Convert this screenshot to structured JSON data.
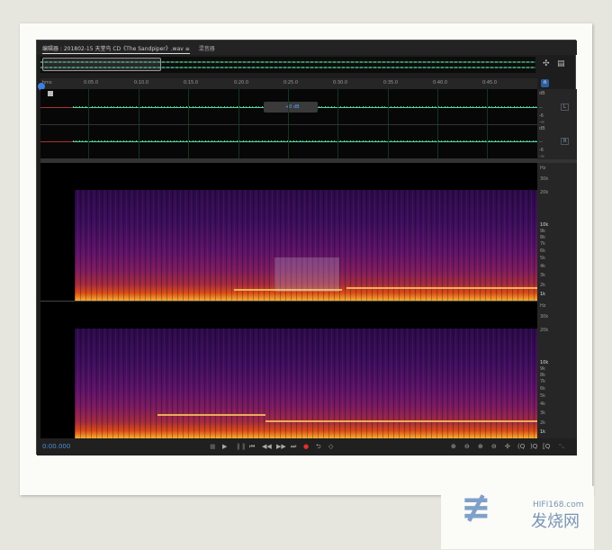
{
  "editor": {
    "tab_label": "编辑器 : 201802-15 天堂鸟 CD《The Sandpiper》.wav",
    "tab_menu_icon": "≡",
    "mixer_tab": "混音器"
  },
  "ruler": {
    "ticks": [
      "hms",
      "0:05.0",
      "0:10.0",
      "0:15.0",
      "0:20.0",
      "0:25.0",
      "0:30.0",
      "0:35.0",
      "0:40.0",
      "0:45.0"
    ]
  },
  "hud": {
    "volume": "+0 dB"
  },
  "waveform": {
    "channels": [
      {
        "label": "L",
        "scale": [
          "dB",
          "--",
          "-6",
          "-∞"
        ]
      },
      {
        "label": "R",
        "scale": [
          "dB",
          "--",
          "-6",
          "-∞"
        ]
      }
    ]
  },
  "spectrum": {
    "scale": [
      "Hz",
      "30k",
      "20k",
      "10k",
      "9k",
      "8k",
      "7k",
      "6k",
      "5k",
      "4k",
      "3k",
      "2k",
      "1k"
    ]
  },
  "transport": {
    "time": "0:00.000"
  },
  "colors": {
    "accent": "#4c8fd8",
    "waveform": "#5ad6a0",
    "playhead": "#3f7fe0",
    "record": "#e03030"
  },
  "watermark": {
    "text": "HIFI168.com",
    "text2": "发烧网"
  }
}
